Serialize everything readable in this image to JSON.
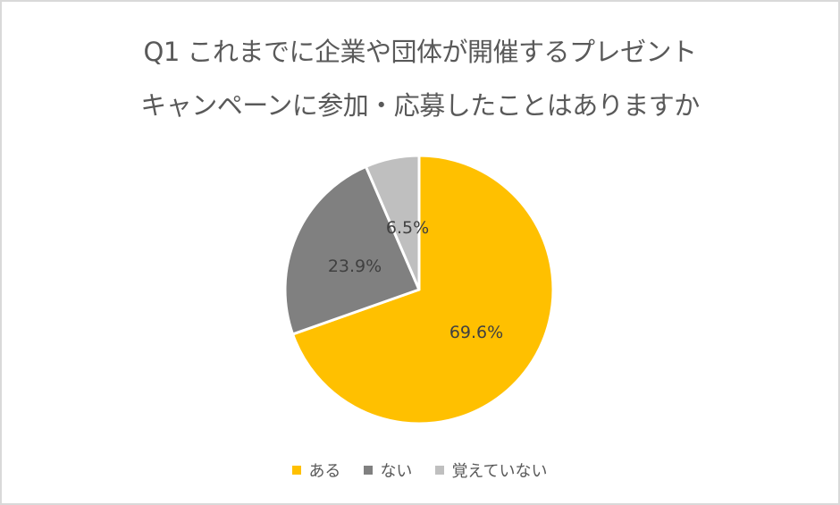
{
  "chart": {
    "title_line1": "Q1 これまでに企業や団体が開催するプレゼント",
    "title_line2": "キャンペーンに参加・応募したことはありますか"
  },
  "legend": [
    {
      "label": "ある",
      "color": "#FFC000"
    },
    {
      "label": "ない",
      "color": "#808080"
    },
    {
      "label": "覚えていない",
      "color": "#BFBFBF"
    }
  ],
  "labels": {
    "aru": "69.6%",
    "nai": "23.9%",
    "oboeteinai": "6.5%"
  },
  "chart_data": {
    "type": "pie",
    "title": "Q1 これまでに企業や団体が開催するプレゼントキャンペーンに参加・応募したことはありますか",
    "categories": [
      "ある",
      "ない",
      "覚えていない"
    ],
    "values": [
      69.6,
      23.9,
      6.5
    ],
    "unit": "%",
    "colors": [
      "#FFC000",
      "#808080",
      "#BFBFBF"
    ],
    "start_angle": "12 o'clock, clockwise",
    "legend_position": "bottom",
    "data_labels": [
      "69.6%",
      "23.9%",
      "6.5%"
    ]
  }
}
